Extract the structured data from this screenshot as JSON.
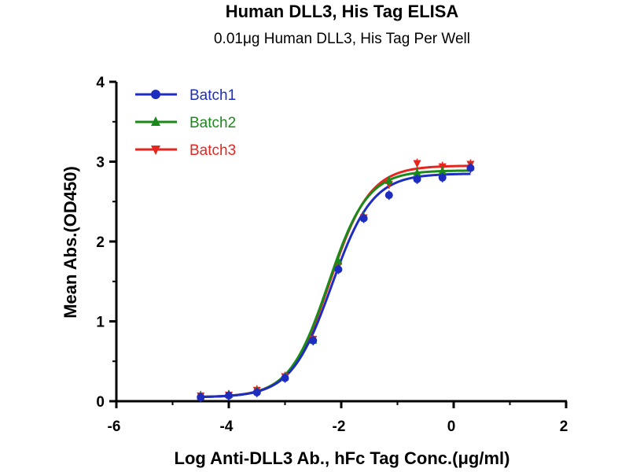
{
  "chart_data": {
    "type": "line",
    "title": "Human DLL3, His Tag ELISA",
    "subtitle": "0.01μg Human DLL3, His Tag Per Well",
    "xlabel": "Log Anti-DLL3 Ab., hFc Tag Conc.(μg/ml)",
    "ylabel": "Mean Abs.(OD450)",
    "xlim": [
      -6,
      2
    ],
    "ylim": [
      0,
      4
    ],
    "x_ticks": [
      "-6",
      "-4",
      "-2",
      "0",
      "2"
    ],
    "y_ticks": [
      "0",
      "1",
      "2",
      "3",
      "4"
    ],
    "legend_position": "top-left",
    "grid": false,
    "series": [
      {
        "name": "Batch1",
        "color": "#1f2dbf",
        "marker": "circle",
        "x": [
          -4.5,
          -4.0,
          -3.5,
          -3.0,
          -2.5,
          -2.05,
          -1.6,
          -1.15,
          -0.65,
          -0.2,
          0.3
        ],
        "y": [
          0.05,
          0.07,
          0.11,
          0.29,
          0.76,
          1.65,
          2.29,
          2.58,
          2.78,
          2.8,
          2.92
        ],
        "fit": {
          "bottom": 0.05,
          "top": 2.85,
          "logec50": -2.17,
          "hill": 1.2
        }
      },
      {
        "name": "Batch2",
        "color": "#1a8a1a",
        "marker": "triangle-up",
        "x": [
          -4.5,
          -4.0,
          -3.5,
          -3.0,
          -2.5,
          -2.05,
          -1.6,
          -1.15,
          -0.65,
          -0.2,
          0.3
        ],
        "y": [
          0.06,
          0.08,
          0.13,
          0.3,
          0.76,
          1.75,
          2.31,
          2.76,
          2.86,
          2.88,
          2.93
        ],
        "fit": {
          "bottom": 0.05,
          "top": 2.89,
          "logec50": -2.23,
          "hill": 1.25
        }
      },
      {
        "name": "Batch3",
        "color": "#e5261f",
        "marker": "triangle-down",
        "x": [
          -4.5,
          -4.0,
          -3.5,
          -3.0,
          -2.5,
          -2.05,
          -1.6,
          -1.15,
          -0.65,
          -0.2,
          0.3
        ],
        "y": [
          0.07,
          0.08,
          0.14,
          0.31,
          0.78,
          1.7,
          2.3,
          2.72,
          2.98,
          2.94,
          2.97
        ],
        "fit": {
          "bottom": 0.05,
          "top": 2.95,
          "logec50": -2.2,
          "hill": 1.22
        }
      }
    ]
  }
}
